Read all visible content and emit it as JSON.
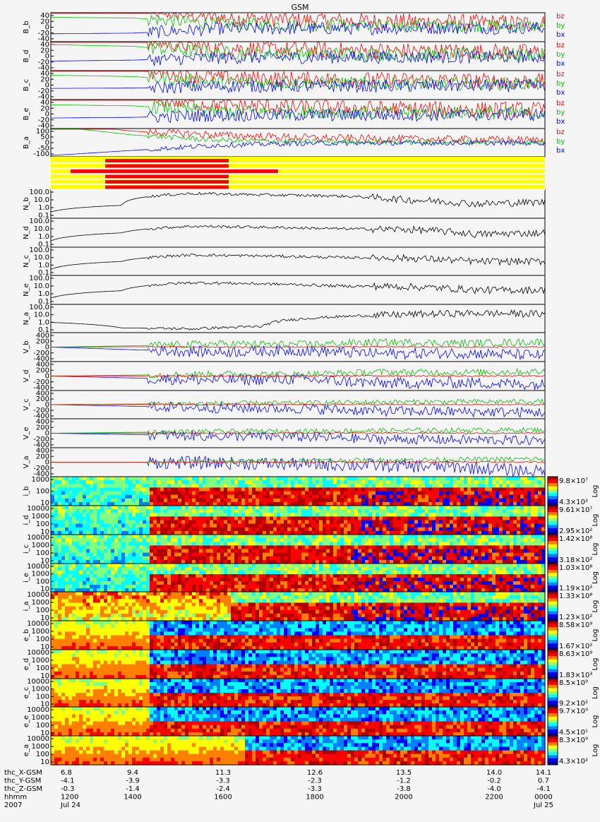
{
  "title": "GSM",
  "colors": {
    "bx": "#0000ff",
    "by": "#00c000",
    "bz": "#ff0000",
    "flag_bg": "#ffff00",
    "flag_on": "#ff0000",
    "trace": "#000000",
    "panel_bg": "#f5f5f5"
  },
  "chart_data": [
    {
      "type": "line",
      "panel": "B_b",
      "ylabel": "B_b",
      "yticks": [
        "40",
        "20",
        "0",
        "-20",
        "-40"
      ],
      "legend": [
        "bz",
        "by",
        "bx"
      ],
      "series": [
        {
          "name": "bz",
          "values": [
            60,
            56,
            30,
            22,
            18,
            15,
            12
          ]
        },
        {
          "name": "by",
          "values": [
            30,
            28,
            10,
            8,
            5,
            5,
            3
          ]
        },
        {
          "name": "bx",
          "values": [
            -20,
            -18,
            -5,
            -4,
            -3,
            -2,
            -2
          ]
        }
      ]
    },
    {
      "type": "line",
      "panel": "B_d",
      "ylabel": "B_d",
      "yticks": [
        "40",
        "20",
        "0",
        "-20",
        "-40"
      ],
      "legend": [
        "bz",
        "by",
        "bx"
      ],
      "series": [
        {
          "name": "bz",
          "values": [
            55,
            50,
            25,
            20,
            16,
            14,
            12
          ]
        },
        {
          "name": "by",
          "values": [
            35,
            30,
            10,
            8,
            6,
            5,
            4
          ]
        },
        {
          "name": "bx",
          "values": [
            -15,
            -12,
            -5,
            -4,
            -3,
            -3,
            -2
          ]
        }
      ]
    },
    {
      "type": "line",
      "panel": "B_c",
      "ylabel": "B_c",
      "yticks": [
        "40",
        "20",
        "0",
        "-20",
        "-40"
      ],
      "legend": [
        "bz",
        "by",
        "bx"
      ],
      "series": [
        {
          "name": "bz",
          "values": [
            50,
            45,
            24,
            18,
            15,
            13,
            11
          ]
        },
        {
          "name": "by",
          "values": [
            30,
            26,
            9,
            7,
            5,
            4,
            3
          ]
        },
        {
          "name": "bx",
          "values": [
            -10,
            -9,
            -4,
            -3,
            -3,
            -2,
            -2
          ]
        }
      ]
    },
    {
      "type": "line",
      "panel": "B_e",
      "ylabel": "B_e",
      "yticks": [
        "40",
        "20",
        "0",
        "-20",
        "-40"
      ],
      "legend": [
        "bz",
        "by",
        "bx"
      ],
      "series": [
        {
          "name": "bz",
          "values": [
            55,
            52,
            28,
            20,
            16,
            14,
            12
          ]
        },
        {
          "name": "by",
          "values": [
            28,
            25,
            9,
            7,
            5,
            4,
            3
          ]
        },
        {
          "name": "bx",
          "values": [
            -12,
            -10,
            -4,
            -3,
            -3,
            -2,
            -2
          ]
        }
      ]
    },
    {
      "type": "line",
      "panel": "B_a",
      "ylabel": "B_a",
      "yticks": [
        "100",
        "50",
        "0",
        "-50",
        "-100"
      ],
      "legend": [
        "bz",
        "by",
        "bx"
      ],
      "series": [
        {
          "name": "bz",
          "values": [
            150,
            90,
            60,
            40,
            30,
            25,
            20
          ]
        },
        {
          "name": "by",
          "values": [
            130,
            60,
            20,
            10,
            5,
            5,
            3
          ]
        },
        {
          "name": "bx",
          "values": [
            -100,
            -60,
            -20,
            -5,
            -3,
            -2,
            -2
          ]
        }
      ]
    },
    {
      "type": "line",
      "panel": "N_b",
      "ylabel": "N_b",
      "scale": "log",
      "yticks": [
        "100.0",
        "10.0",
        "1.0",
        "0.1"
      ],
      "series": [
        {
          "name": "",
          "values": [
            0.3,
            2.0,
            60,
            40,
            30,
            10,
            3,
            5
          ]
        }
      ]
    },
    {
      "type": "line",
      "panel": "N_d",
      "ylabel": "N_d",
      "scale": "log",
      "yticks": [
        "100.0",
        "10.0",
        "1.0",
        "0.1"
      ],
      "series": [
        {
          "name": "",
          "values": [
            0.3,
            3.0,
            20,
            15,
            10,
            8,
            2,
            3
          ]
        }
      ]
    },
    {
      "type": "line",
      "panel": "N_c",
      "ylabel": "N_c",
      "scale": "log",
      "yticks": [
        "100.0",
        "10.0",
        "1.0",
        "0.1"
      ],
      "series": [
        {
          "name": "",
          "values": [
            0.3,
            3.0,
            20,
            15,
            10,
            8,
            3,
            3
          ]
        }
      ]
    },
    {
      "type": "line",
      "panel": "N_e",
      "ylabel": "N_e",
      "scale": "log",
      "yticks": [
        "100.0",
        "10.0",
        "1.0",
        "0.1"
      ],
      "series": [
        {
          "name": "",
          "values": [
            0.3,
            2.5,
            25,
            18,
            10,
            8,
            3,
            3
          ]
        }
      ]
    },
    {
      "type": "line",
      "panel": "N_a",
      "ylabel": "N_a",
      "scale": "log",
      "yticks": [
        "100.0",
        "10.0",
        "1.0",
        "0.1"
      ],
      "series": [
        {
          "name": "",
          "values": [
            1.0,
            0.2,
            0.15,
            0.3,
            5,
            10,
            15,
            12
          ]
        }
      ]
    },
    {
      "type": "line",
      "panel": "V_b",
      "ylabel": "V_b",
      "yticks": [
        "400",
        "200",
        "0",
        "-200",
        "-400"
      ],
      "series": [
        {
          "name": "vx",
          "values": [
            0,
            -80,
            -150,
            -100,
            -200,
            -180,
            -250
          ]
        },
        {
          "name": "vy",
          "values": [
            0,
            40,
            100,
            80,
            150,
            120,
            160
          ]
        },
        {
          "name": "vz",
          "values": [
            0,
            10,
            0,
            5,
            10,
            0,
            5
          ]
        }
      ]
    },
    {
      "type": "line",
      "panel": "V_d",
      "ylabel": "V_d",
      "yticks": [
        "400",
        "200",
        "0",
        "-200",
        "-400"
      ],
      "series": [
        {
          "name": "vx",
          "values": [
            0,
            -60,
            -120,
            -90,
            -220,
            -200,
            -260
          ]
        },
        {
          "name": "vy",
          "values": [
            0,
            30,
            60,
            50,
            120,
            110,
            140
          ]
        },
        {
          "name": "vz",
          "values": [
            0,
            5,
            0,
            5,
            10,
            0,
            5
          ]
        }
      ]
    },
    {
      "type": "line",
      "panel": "V_c",
      "ylabel": "V_c",
      "yticks": [
        "400",
        "200",
        "0",
        "-200",
        "-400"
      ],
      "series": [
        {
          "name": "vx",
          "values": [
            0,
            -50,
            -100,
            -120,
            -200,
            -220,
            -240
          ]
        },
        {
          "name": "vy",
          "values": [
            0,
            20,
            40,
            50,
            80,
            90,
            100
          ]
        },
        {
          "name": "vz",
          "values": [
            0,
            5,
            0,
            5,
            10,
            0,
            5
          ]
        }
      ]
    },
    {
      "type": "line",
      "panel": "V_e",
      "ylabel": "V_e",
      "yticks": [
        "400",
        "200",
        "0",
        "-200",
        "-400"
      ],
      "series": [
        {
          "name": "vx",
          "values": [
            0,
            -40,
            -90,
            -110,
            -180,
            -200,
            -220
          ]
        },
        {
          "name": "vy",
          "values": [
            0,
            30,
            50,
            60,
            80,
            90,
            100
          ]
        },
        {
          "name": "vz",
          "values": [
            0,
            5,
            0,
            5,
            10,
            0,
            5
          ]
        }
      ]
    },
    {
      "type": "line",
      "panel": "V_a",
      "ylabel": "V_a",
      "yticks": [
        "400",
        "200",
        "0",
        "-200",
        "-400"
      ],
      "series": [
        {
          "name": "vx",
          "values": [
            0,
            0,
            -20,
            -60,
            -100,
            -150,
            -300
          ]
        },
        {
          "name": "vy",
          "values": [
            0,
            0,
            20,
            40,
            60,
            80,
            100
          ]
        },
        {
          "name": "vz",
          "values": [
            0,
            0,
            5,
            5,
            10,
            5,
            5
          ]
        }
      ]
    },
    {
      "type": "heatmap",
      "panel": "i_b",
      "ylabel": "i_b",
      "yticks": [
        "1000",
        "100",
        "10"
      ],
      "cbar_max": "9.8×10⁷",
      "cbar_min": "4.3×10²",
      "cbar_label": "Log",
      "species": "ion"
    },
    {
      "type": "heatmap",
      "panel": "i_d",
      "ylabel": "i_d",
      "yticks": [
        "10000",
        "1000",
        "100",
        "10"
      ],
      "cbar_max": "9.61×10⁷",
      "cbar_min": "2.95×10²",
      "cbar_label": "Log",
      "species": "ion"
    },
    {
      "type": "heatmap",
      "panel": "i_c",
      "ylabel": "i_c",
      "yticks": [
        "10000",
        "1000",
        "100",
        "10"
      ],
      "cbar_max": "1.42×10⁸",
      "cbar_min": "3.18×10²",
      "cbar_label": "Log",
      "species": "ion"
    },
    {
      "type": "heatmap",
      "panel": "i_e",
      "ylabel": "i_e",
      "yticks": [
        "10000",
        "1000",
        "100",
        "10"
      ],
      "cbar_max": "1.03×10⁸",
      "cbar_min": "1.19×10²",
      "cbar_label": "Log",
      "species": "ion"
    },
    {
      "type": "heatmap",
      "panel": "i_a",
      "ylabel": "i_a",
      "yticks": [
        "10000",
        "1000",
        "100",
        "10"
      ],
      "cbar_max": "1.33×10⁸",
      "cbar_min": "1.23×10²",
      "cbar_label": "Log",
      "species": "ion_a"
    },
    {
      "type": "heatmap",
      "panel": "e_b",
      "ylabel": "e_b",
      "yticks": [
        "10000",
        "1000",
        "100",
        "10"
      ],
      "cbar_max": "8.58×10⁹",
      "cbar_min": "1.67×10²",
      "cbar_label": "Log",
      "species": "electron"
    },
    {
      "type": "heatmap",
      "panel": "e_d",
      "ylabel": "e_d",
      "yticks": [
        "10000",
        "1000",
        "100",
        "10"
      ],
      "cbar_max": "8.63×10⁹",
      "cbar_min": "1.83×10³",
      "cbar_label": "Log",
      "species": "electron"
    },
    {
      "type": "heatmap",
      "panel": "e_c",
      "ylabel": "e_c",
      "yticks": [
        "10000",
        "1000",
        "100",
        "10"
      ],
      "cbar_max": "8.5×10⁹",
      "cbar_min": "9.2×10²",
      "cbar_label": "Log",
      "species": "electron"
    },
    {
      "type": "heatmap",
      "panel": "e_e",
      "ylabel": "e_e",
      "yticks": [
        "10000",
        "1000",
        "100",
        "10"
      ],
      "cbar_max": "9.7×10⁹",
      "cbar_min": "4.5×10¹",
      "cbar_label": "Log",
      "species": "electron"
    },
    {
      "type": "heatmap",
      "panel": "e_a",
      "ylabel": "e_a",
      "yticks": [
        "10000",
        "1000",
        "100",
        "10"
      ],
      "cbar_max": "8.3×10⁹",
      "cbar_min": "4.3×10²",
      "cbar_label": "Log",
      "species": "electron_a"
    }
  ],
  "xaxis": {
    "rows": [
      {
        "label": "thc_X-GSM",
        "values": [
          "6.8",
          "9.4",
          "11.3",
          "12.6",
          "13.5",
          "14.0",
          "14.1"
        ]
      },
      {
        "label": "thc_Y-GSM",
        "values": [
          "-4.1",
          "-3.9",
          "-3.3",
          "-2.3",
          "-1.2",
          "-0.2",
          "0.7"
        ]
      },
      {
        "label": "thc_Z-GSM",
        "values": [
          "-0.3",
          "-1.4",
          "-2.4",
          "-3.3",
          "-3.8",
          "-4.0",
          "-4.1"
        ]
      },
      {
        "label": "hhmm",
        "values": [
          "1200",
          "1400",
          "1600",
          "1800",
          "2000",
          "2200",
          "0000"
        ]
      },
      {
        "label": "2007",
        "values": [
          "Jul 24",
          "",
          "",
          "",
          "",
          "",
          "Jul 25"
        ]
      }
    ]
  }
}
